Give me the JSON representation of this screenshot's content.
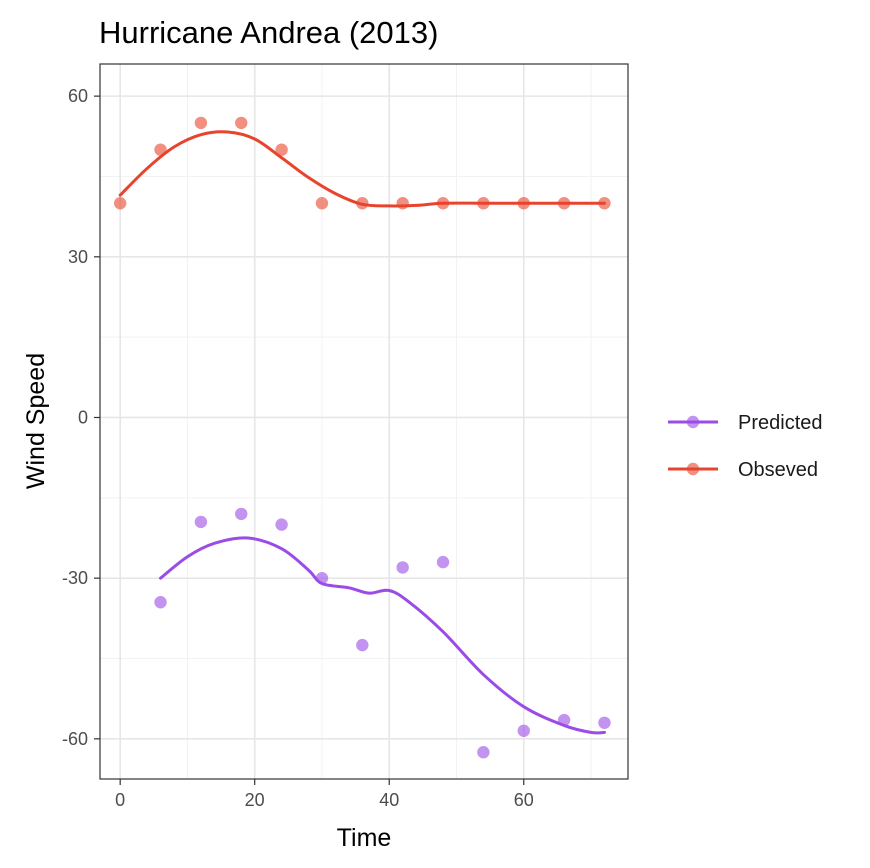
{
  "chart_data": {
    "type": "line",
    "title": "Hurricane Andrea (2013)",
    "xlabel": "Time",
    "ylabel": "Wind Speed",
    "xlim": [
      -3,
      75.5
    ],
    "ylim": [
      -67.5,
      66
    ],
    "x_ticks": [
      0,
      20,
      40,
      60
    ],
    "x_tick_labels": [
      "0",
      "20",
      "40",
      "60"
    ],
    "y_ticks": [
      -60,
      -30,
      0,
      30,
      60
    ],
    "y_tick_labels": [
      "-60",
      "-30",
      "0",
      "30",
      "60"
    ],
    "grid": true,
    "legend_position": "right",
    "series": [
      {
        "name": "Predicted",
        "color": "#9b4be6",
        "points": [
          {
            "x": 6,
            "y": -34.5
          },
          {
            "x": 12,
            "y": -19.5
          },
          {
            "x": 18,
            "y": -18
          },
          {
            "x": 24,
            "y": -20
          },
          {
            "x": 30,
            "y": -30
          },
          {
            "x": 36,
            "y": -42.5
          },
          {
            "x": 42,
            "y": -28
          },
          {
            "x": 48,
            "y": -27
          },
          {
            "x": 54,
            "y": -62.5
          },
          {
            "x": 60,
            "y": -58.5
          },
          {
            "x": 66,
            "y": -56.5
          },
          {
            "x": 72,
            "y": -57
          }
        ],
        "smooth": [
          {
            "x": 6,
            "y": -30
          },
          {
            "x": 10,
            "y": -26
          },
          {
            "x": 14,
            "y": -23.5
          },
          {
            "x": 19,
            "y": -22.5
          },
          {
            "x": 24,
            "y": -24.5
          },
          {
            "x": 28,
            "y": -28.5
          },
          {
            "x": 30,
            "y": -31
          },
          {
            "x": 34,
            "y": -31.8
          },
          {
            "x": 37,
            "y": -32.8
          },
          {
            "x": 40,
            "y": -32.3
          },
          {
            "x": 43,
            "y": -34.5
          },
          {
            "x": 48,
            "y": -40
          },
          {
            "x": 54,
            "y": -48
          },
          {
            "x": 60,
            "y": -54
          },
          {
            "x": 66,
            "y": -57.5
          },
          {
            "x": 70,
            "y": -58.8
          },
          {
            "x": 72,
            "y": -58.8
          }
        ]
      },
      {
        "name": "Obseved",
        "color": "#e8442d",
        "points": [
          {
            "x": 0,
            "y": 40
          },
          {
            "x": 6,
            "y": 50
          },
          {
            "x": 12,
            "y": 55
          },
          {
            "x": 18,
            "y": 55
          },
          {
            "x": 24,
            "y": 50
          },
          {
            "x": 30,
            "y": 40
          },
          {
            "x": 36,
            "y": 40
          },
          {
            "x": 42,
            "y": 40
          },
          {
            "x": 48,
            "y": 40
          },
          {
            "x": 54,
            "y": 40
          },
          {
            "x": 60,
            "y": 40
          },
          {
            "x": 66,
            "y": 40
          },
          {
            "x": 72,
            "y": 40
          }
        ],
        "smooth": [
          {
            "x": 0,
            "y": 41.5
          },
          {
            "x": 4,
            "y": 46.5
          },
          {
            "x": 8,
            "y": 50.5
          },
          {
            "x": 12,
            "y": 52.8
          },
          {
            "x": 16,
            "y": 53.3
          },
          {
            "x": 20,
            "y": 52
          },
          {
            "x": 24,
            "y": 48.5
          },
          {
            "x": 28,
            "y": 44.8
          },
          {
            "x": 32,
            "y": 41.8
          },
          {
            "x": 36,
            "y": 39.8
          },
          {
            "x": 40,
            "y": 39.5
          },
          {
            "x": 44,
            "y": 39.6
          },
          {
            "x": 48,
            "y": 40
          },
          {
            "x": 54,
            "y": 40
          },
          {
            "x": 60,
            "y": 40
          },
          {
            "x": 66,
            "y": 40
          },
          {
            "x": 72,
            "y": 40
          }
        ]
      }
    ],
    "legend_order": [
      0,
      1
    ]
  }
}
